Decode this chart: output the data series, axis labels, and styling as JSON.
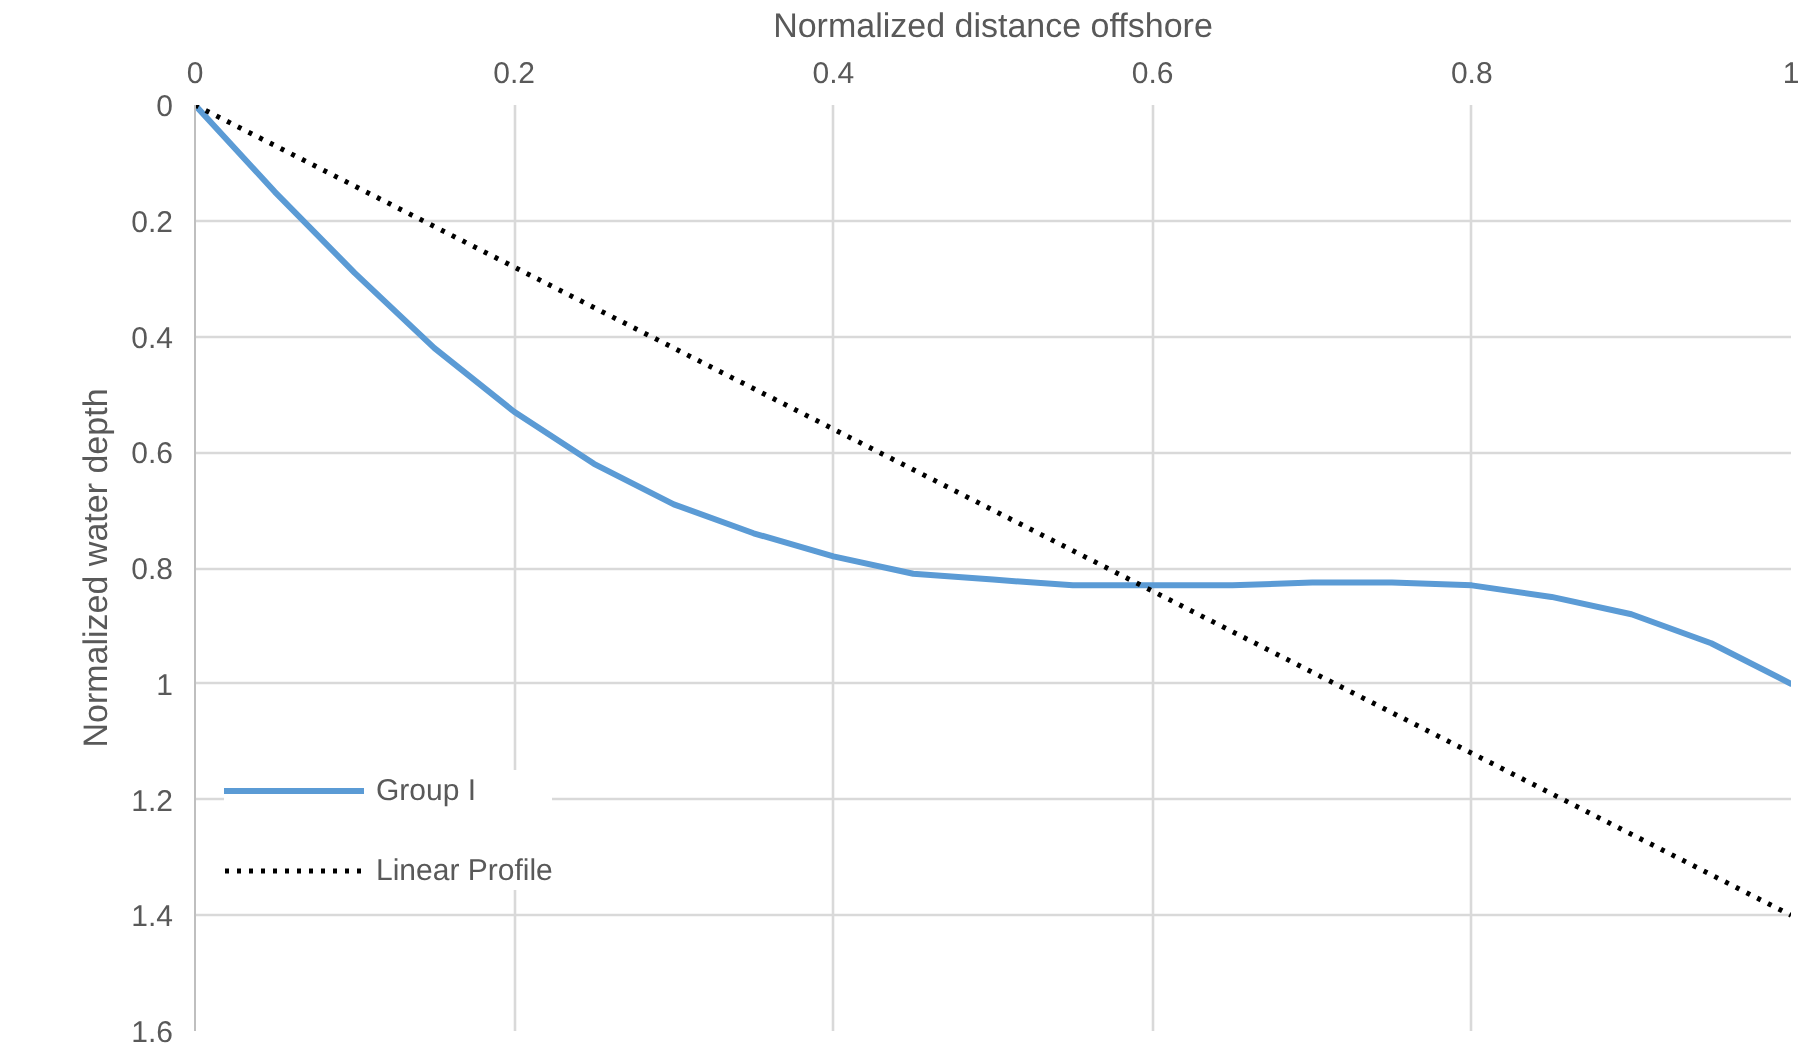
{
  "chart_data": {
    "type": "line",
    "xlabel": "Normalized distance offshore",
    "ylabel": "Normalized water depth",
    "xlim": [
      0,
      1
    ],
    "xticks": [
      0,
      0.2,
      0.4,
      0.6,
      0.8,
      1
    ],
    "ylim": [
      1.6,
      0
    ],
    "yticks": [
      0,
      0.2,
      0.4,
      0.6,
      0.8,
      1,
      1.2,
      1.4,
      1.6
    ],
    "grid": true,
    "legend": "bottom left",
    "marker": "none",
    "series": [
      {
        "name": "Group I",
        "color": "#5b9bd5",
        "line_style": "solid",
        "x": [
          0,
          0.05,
          0.1,
          0.15,
          0.2,
          0.25,
          0.3,
          0.35,
          0.4,
          0.45,
          0.5,
          0.55,
          0.6,
          0.65,
          0.7,
          0.75,
          0.8,
          0.85,
          0.9,
          0.95,
          1
        ],
        "values": [
          0,
          0.15,
          0.29,
          0.42,
          0.53,
          0.62,
          0.69,
          0.74,
          0.78,
          0.81,
          0.82,
          0.83,
          0.83,
          0.83,
          0.825,
          0.825,
          0.83,
          0.85,
          0.88,
          0.93,
          1
        ]
      },
      {
        "name": "Linear Profile",
        "color": "#000000",
        "line_style": "dotted",
        "x": [
          0,
          1
        ],
        "values": [
          0,
          1.4
        ]
      }
    ]
  }
}
